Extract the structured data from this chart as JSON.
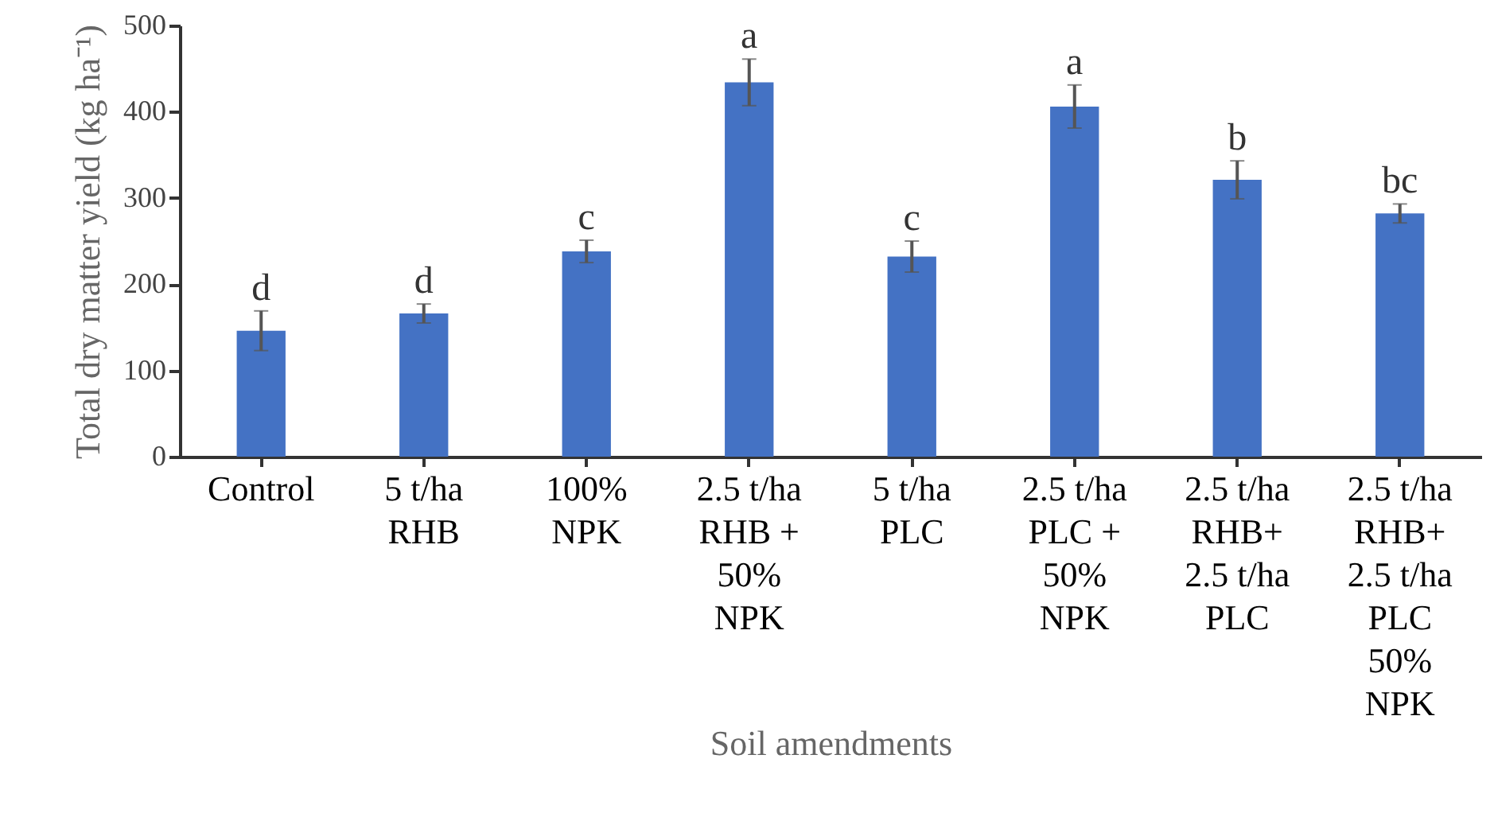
{
  "chart_data": {
    "type": "bar",
    "xlabel": "Soil amendments",
    "ylabel": "Total dry matter yield (kg ha⁻¹)",
    "categories": [
      "Control",
      "5 t/ha\nRHB",
      "100%\nNPK",
      "2.5 t/ha\nRHB +\n50%\nNPK",
      "5 t/ha\nPLC",
      "2.5 t/ha\nPLC +\n50%\nNPK",
      "2.5 t/ha\nRHB+\n2.5 t/ha\nPLC",
      "2.5 t/ha\nRHB+\n2.5 t/ha\nPLC\n50%\nNPK"
    ],
    "values": [
      146,
      166,
      238,
      434,
      232,
      406,
      321,
      282
    ],
    "errors": [
      23,
      11,
      13,
      27,
      18,
      25,
      22,
      11
    ],
    "color": "#4472c4",
    "ylim": [
      0,
      500
    ],
    "yticks": [
      0,
      100,
      200,
      300,
      400,
      500
    ],
    "grid": false,
    "annotations": [
      {
        "text": "d",
        "x": "Control",
        "y": 169
      },
      {
        "text": "d",
        "x": "5 t/ha\nRHB",
        "y": 177
      },
      {
        "text": "c",
        "x": "100%\nNPK",
        "y": 251
      },
      {
        "text": "a",
        "x": "2.5 t/ha\nRHB +\n50%\nNPK",
        "y": 461
      },
      {
        "text": "c",
        "x": "5 t/ha\nPLC",
        "y": 250
      },
      {
        "text": "a",
        "x": "2.5 t/ha\nPLC +\n50%\nNPK",
        "y": 431
      },
      {
        "text": "b",
        "x": "2.5 t/ha\nRHB+\n2.5 t/ha\nPLC",
        "y": 343
      },
      {
        "text": "bc",
        "x": "2.5 t/ha\nRHB+\n2.5 t/ha\nPLC\n50%\nNPK",
        "y": 293
      }
    ]
  }
}
